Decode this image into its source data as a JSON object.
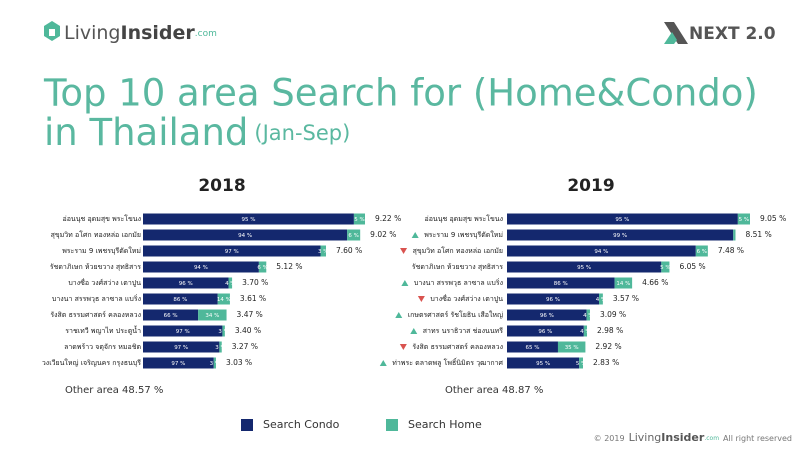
{
  "header": {
    "logo": "Living",
    "logo_bold": "Insider",
    "logo_suffix": ".com",
    "partner": "NEXT 2.0"
  },
  "title_lines": [
    "Top 10 area Search for (Home&Condo)",
    "in Thailand"
  ],
  "title_note": "(Jan-Sep)",
  "chart_data": [
    {
      "type": "bar",
      "orientation": "horizontal",
      "stacked": true,
      "title": "2018",
      "categories": [
        "อ่อนนุช อุดมสุข พระโขนง",
        "สุขุมวิท อโศก ทองหล่อ เอกมัย",
        "พระราม 9 เพชรบุรีตัดใหม่",
        "รัชดาภิเษก ห้วยขวาง สุทธิสาร",
        "บางซื่อ วงศ์สว่าง เตาปูน",
        "บางนา สรรพวุธ ลาซาล แบริ่ง",
        "รังสิต ธรรมศาสตร์ คลองหลวง",
        "ราชเทวี พญาไท ประตูน้ำ",
        "ลาดพร้าว จตุจักร หมอชิต",
        "วงเวียนใหญ่ เจริญนคร กรุงธนบุรี"
      ],
      "series": [
        {
          "name": "Search Condo",
          "color": "#14286e",
          "values": [
            95,
            94,
            97,
            94,
            96,
            86,
            66,
            97,
            97,
            97
          ],
          "value_labels": [
            "95 %",
            "94 %",
            "97 %",
            "94 %",
            "96 %",
            "86 %",
            "66 %",
            "97 %",
            "97 %",
            "97 %"
          ]
        },
        {
          "name": "Search Home",
          "color": "#4fb89a",
          "values": [
            5,
            6,
            3,
            6,
            4,
            14,
            34,
            3,
            3,
            3
          ],
          "value_labels": [
            "5 %",
            "6 %",
            "3 %",
            "6 %",
            "4 %",
            "14 %",
            "34 %",
            "3 %",
            "3 %",
            "3 %"
          ]
        }
      ],
      "totals": {
        "values": [
          9.22,
          9.02,
          7.6,
          5.12,
          3.7,
          3.61,
          3.47,
          3.4,
          3.27,
          3.03
        ],
        "value_labels": [
          "9.22 %",
          "9.02 %",
          "7.60 %",
          "5.12 %",
          "3.70 %",
          "3.61 %",
          "3.47 %",
          "3.40 %",
          "3.27 %",
          "3.03 %"
        ]
      },
      "annotation": "Other area 48.57 %"
    },
    {
      "type": "bar",
      "orientation": "horizontal",
      "stacked": true,
      "title": "2019",
      "categories": [
        "อ่อนนุช อุดมสุข พระโขนง",
        "พระราม 9 เพชรบุรีตัดใหม่",
        "สุขุมวิท อโศก ทองหล่อ เอกมัย",
        "รัชดาภิเษก ห้วยขวาง สุทธิสาร",
        "บางนา สรรพวุธ ลาซาล แบริ่ง",
        "บางซื่อ วงศ์สว่าง เตาปูน",
        "เกษตรศาสตร์ รัชโยธิน เสือใหญ่",
        "สาทร นราธิวาส ช่องนนทรี",
        "รังสิต ธรรมศาสตร์ คลองหลวง",
        "ท่าพระ ตลาดพลู โพธิ์นิมิตร วุฒากาศ"
      ],
      "trend": [
        null,
        "up",
        "down",
        null,
        "up",
        "down",
        "up",
        "up",
        "down",
        "up"
      ],
      "series": [
        {
          "name": "Search Condo",
          "color": "#14286e",
          "values": [
            95,
            99,
            94,
            95,
            86,
            96,
            96,
            96,
            65,
            95
          ],
          "value_labels": [
            "95 %",
            "99 %",
            "94 %",
            "95 %",
            "86 %",
            "96 %",
            "96 %",
            "96 %",
            "65 %",
            "95 %"
          ]
        },
        {
          "name": "Search Home",
          "color": "#4fb89a",
          "values": [
            5,
            1,
            6,
            5,
            14,
            4,
            4,
            4,
            35,
            5
          ],
          "value_labels": [
            "5 %",
            null,
            "6 %",
            "5 %",
            "14 %",
            "4 %",
            "4 %",
            "4 %",
            "35 %",
            "5 %"
          ]
        }
      ],
      "totals": {
        "values": [
          9.05,
          8.51,
          7.48,
          6.05,
          4.66,
          3.57,
          3.09,
          2.98,
          2.92,
          2.83
        ],
        "value_labels": [
          "9.05 %",
          "8.51 %",
          "7.48 %",
          "6.05 %",
          "4.66 %",
          "3.57 %",
          "3.09 %",
          "2.98 %",
          "2.92 %",
          "2.83 %"
        ]
      },
      "annotation": "Other area 48.87 %"
    }
  ],
  "footer": {
    "copyright": "© 2019",
    "brand": "Living",
    "brand_bold": "Insider",
    "brand_suffix": ".com",
    "rights": "All right reserved"
  }
}
